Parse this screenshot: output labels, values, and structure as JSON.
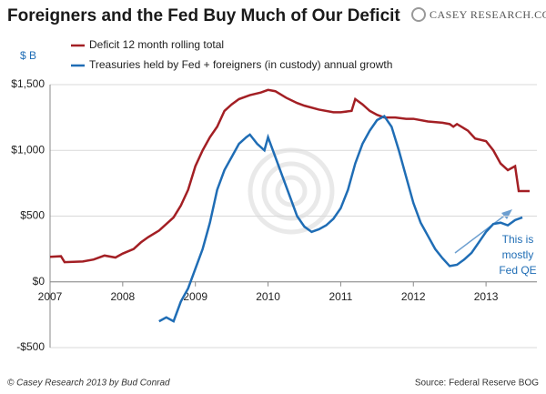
{
  "chart_data": {
    "type": "line",
    "title": "Foreigners and the Fed Buy Much of Our Deficit",
    "logo": "CASEY RESEARCH.COM",
    "y_unit": "$ B",
    "source": "Source: Federal Reserve BOG",
    "credit": "© Casey Research 2013 by Bud Conrad",
    "annotation": [
      "This is",
      "mostly",
      "Fed QE"
    ],
    "xlim": [
      2007,
      2013.7
    ],
    "xticks": [
      2007,
      2008,
      2009,
      2010,
      2011,
      2012,
      2013
    ],
    "ylim": [
      -500,
      1500
    ],
    "yticks": [
      {
        "value": -500,
        "label": "-$500"
      },
      {
        "value": 0,
        "label": "$0"
      },
      {
        "value": 500,
        "label": "$500"
      },
      {
        "value": 1000,
        "label": "$1,000"
      },
      {
        "value": 1500,
        "label": "$1,500"
      }
    ],
    "grid": true,
    "series": [
      {
        "name": "Deficit 12 month rolling total",
        "color": "#a31f24",
        "x": [
          2007.0,
          2007.15,
          2007.2,
          2007.45,
          2007.6,
          2007.75,
          2007.9,
          2008.0,
          2008.15,
          2008.25,
          2008.35,
          2008.5,
          2008.6,
          2008.7,
          2008.8,
          2008.9,
          2009.0,
          2009.1,
          2009.2,
          2009.3,
          2009.4,
          2009.5,
          2009.6,
          2009.75,
          2009.9,
          2010.0,
          2010.1,
          2010.25,
          2010.4,
          2010.5,
          2010.7,
          2010.9,
          2011.0,
          2011.15,
          2011.2,
          2011.3,
          2011.4,
          2011.5,
          2011.6,
          2011.75,
          2011.9,
          2012.0,
          2012.2,
          2012.4,
          2012.5,
          2012.55,
          2012.6,
          2012.75,
          2012.85,
          2013.0,
          2013.1,
          2013.2,
          2013.3,
          2013.4,
          2013.45,
          2013.6
        ],
        "values": [
          190,
          195,
          150,
          155,
          170,
          200,
          185,
          215,
          250,
          300,
          340,
          390,
          440,
          490,
          580,
          700,
          880,
          1000,
          1100,
          1180,
          1300,
          1350,
          1390,
          1420,
          1440,
          1460,
          1450,
          1400,
          1360,
          1340,
          1310,
          1290,
          1290,
          1300,
          1390,
          1350,
          1300,
          1270,
          1250,
          1250,
          1240,
          1240,
          1220,
          1210,
          1200,
          1180,
          1200,
          1150,
          1090,
          1070,
          1000,
          900,
          850,
          880,
          690,
          690
        ]
      },
      {
        "name": "Treasuries held by Fed + foreigners (in custody) annual growth",
        "color": "#1f6db5",
        "x": [
          2008.5,
          2008.6,
          2008.7,
          2008.8,
          2008.9,
          2009.0,
          2009.1,
          2009.2,
          2009.3,
          2009.4,
          2009.5,
          2009.6,
          2009.7,
          2009.75,
          2009.85,
          2009.95,
          2010.0,
          2010.1,
          2010.2,
          2010.3,
          2010.4,
          2010.5,
          2010.6,
          2010.7,
          2010.8,
          2010.9,
          2011.0,
          2011.1,
          2011.2,
          2011.3,
          2011.4,
          2011.5,
          2011.6,
          2011.7,
          2011.8,
          2011.9,
          2012.0,
          2012.1,
          2012.2,
          2012.3,
          2012.4,
          2012.5,
          2012.6,
          2012.7,
          2012.8,
          2012.9,
          2013.0,
          2013.1,
          2013.2,
          2013.3,
          2013.4,
          2013.5
        ],
        "values": [
          -300,
          -270,
          -300,
          -150,
          -50,
          100,
          250,
          450,
          700,
          850,
          950,
          1050,
          1100,
          1120,
          1050,
          1000,
          1100,
          950,
          800,
          650,
          500,
          420,
          380,
          400,
          430,
          480,
          560,
          700,
          900,
          1050,
          1150,
          1230,
          1260,
          1180,
          1000,
          800,
          600,
          450,
          350,
          250,
          180,
          120,
          130,
          170,
          220,
          300,
          380,
          440,
          450,
          430,
          470,
          490
        ]
      }
    ]
  }
}
